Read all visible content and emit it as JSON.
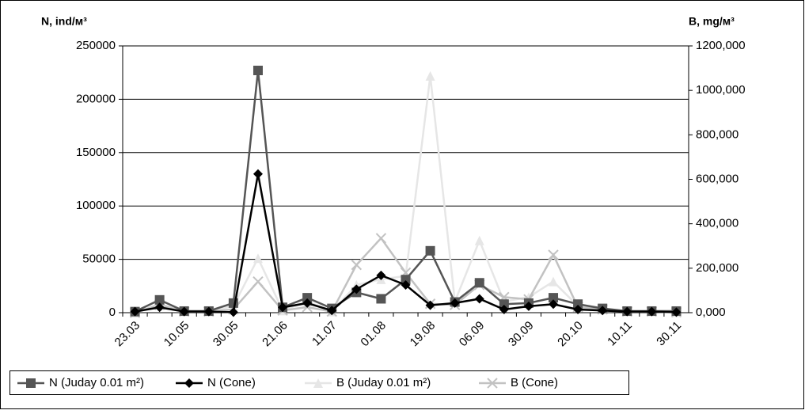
{
  "chart_data": {
    "type": "line",
    "y_label": "N, ind/м³",
    "y2_label": "B, mg/м³",
    "categories": [
      "23.03",
      null,
      "10.05",
      null,
      "30.05",
      null,
      "21.06",
      null,
      "11.07",
      null,
      "01.08",
      null,
      "19.08",
      null,
      "06.09",
      null,
      "30.09",
      null,
      "20.10",
      null,
      "10.11",
      null,
      "30.11"
    ],
    "ylim": [
      0,
      250000
    ],
    "yticks": [
      0,
      50000,
      100000,
      150000,
      200000,
      250000
    ],
    "y2lim": [
      0,
      1200000
    ],
    "y2ticks": [
      {
        "value": 0,
        "label": "0,000"
      },
      {
        "value": 200000,
        "label": "200,000"
      },
      {
        "value": 400000,
        "label": "400,000"
      },
      {
        "value": 600000,
        "label": "600,000"
      },
      {
        "value": 800000,
        "label": "800,000"
      },
      {
        "value": 1000000,
        "label": "1000,000"
      },
      {
        "value": 1200000,
        "label": "1200,000"
      }
    ],
    "grid": true,
    "legend": "bottom",
    "series": [
      {
        "name": "N (Juday 0.01 m²)",
        "color": "#555555",
        "marker": "square",
        "values": [
          1000,
          12000,
          1500,
          1500,
          9000,
          227000,
          5000,
          14000,
          4000,
          19000,
          13000,
          31000,
          58000,
          10000,
          28000,
          8000,
          9000,
          14000,
          8000,
          4000,
          1500,
          1500,
          1500
        ]
      },
      {
        "name": "N (Cone)",
        "color": "#000000",
        "marker": "diamond",
        "values": [
          1000,
          5000,
          1000,
          1000,
          500,
          130000,
          5000,
          9000,
          2000,
          22000,
          35000,
          26000,
          7000,
          9000,
          13000,
          3000,
          6000,
          8000,
          3000,
          2000,
          1000,
          1000,
          500
        ]
      },
      {
        "name": "B (Judaу 0.01 m²)",
        "color": "#e6e6e6",
        "marker": "triangle",
        "axis": "y2",
        "values": [
          0,
          40000,
          5000,
          5000,
          30000,
          245000,
          10000,
          50000,
          5000,
          125000,
          150000,
          165000,
          1065000,
          50000,
          325000,
          50000,
          70000,
          140000,
          30000,
          15000,
          5000,
          5000,
          2000
        ]
      },
      {
        "name": "B (Cone)",
        "color": "#c2c2c2",
        "marker": "x",
        "axis": "y2",
        "values": [
          0,
          35000,
          5000,
          5000,
          15000,
          140000,
          10000,
          25000,
          5000,
          215000,
          335000,
          180000,
          40000,
          35000,
          125000,
          70000,
          60000,
          260000,
          25000,
          15000,
          5000,
          5000,
          2000
        ]
      }
    ]
  }
}
